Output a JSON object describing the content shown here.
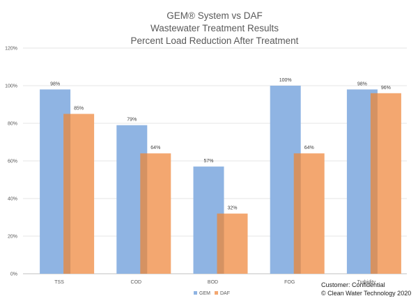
{
  "chart_data": {
    "type": "bar",
    "title": [
      "GEM® System vs DAF",
      "Wastewater Treatment Results",
      "Percent Load Reduction After Treatment"
    ],
    "categories": [
      "TSS",
      "COD",
      "BOD",
      "FOG",
      "Turbidity"
    ],
    "series": [
      {
        "name": "GEM",
        "values": [
          98,
          79,
          57,
          100,
          98
        ],
        "labels": [
          "98%",
          "79%",
          "57%",
          "100%",
          "98%"
        ],
        "color": "#8FB4E3"
      },
      {
        "name": "DAF",
        "values": [
          85,
          64,
          32,
          64,
          96
        ],
        "labels": [
          "85%",
          "64%",
          "32%",
          "64%",
          "96%"
        ],
        "color": "#F3A770"
      }
    ],
    "ylim": [
      0,
      120
    ],
    "yticks": [
      0,
      20,
      40,
      60,
      80,
      100,
      120
    ],
    "ytick_labels": [
      "0%",
      "20%",
      "40%",
      "60%",
      "80%",
      "100%",
      "120%"
    ],
    "grid": true,
    "legend_position": "bottom"
  },
  "footer": {
    "customer": "Customer:   Confidential",
    "copyright": "© Clean Water Technology  2020"
  }
}
